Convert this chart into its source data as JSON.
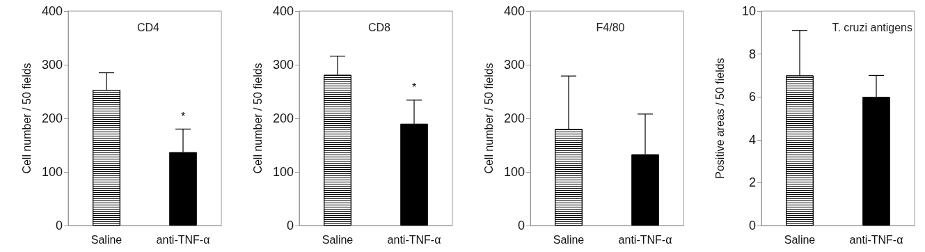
{
  "chart_data": [
    {
      "type": "bar",
      "title": "CD4",
      "ylabel": "Cell number / 50 fields",
      "categories": [
        "Saline",
        "anti-TNF-α"
      ],
      "values": [
        253,
        137
      ],
      "colors": [
        "#ffffff",
        "#000000"
      ],
      "errors": [
        [
          253,
          285
        ],
        [
          137,
          180
        ]
      ],
      "ylim": [
        0,
        400
      ],
      "yticks": [
        0,
        100,
        200,
        300,
        400
      ],
      "grid": false,
      "annotations": [
        "*"
      ]
    },
    {
      "type": "bar",
      "title": "CD8",
      "ylabel": "Cell number / 50 fields",
      "categories": [
        "Saline",
        "anti-TNF-α"
      ],
      "values": [
        281,
        190
      ],
      "colors": [
        "#ffffff",
        "#000000"
      ],
      "errors": [
        [
          281,
          316
        ],
        [
          190,
          234
        ]
      ],
      "ylim": [
        0,
        400
      ],
      "yticks": [
        0,
        100,
        200,
        300,
        400
      ],
      "grid": false,
      "annotations": [
        "*"
      ]
    },
    {
      "type": "bar",
      "title": "F4/80",
      "ylabel": "Cell number / 50 fields",
      "categories": [
        "Saline",
        "anti-TNF-α"
      ],
      "values": [
        180,
        133
      ],
      "colors": [
        "#ffffff",
        "#000000"
      ],
      "errors": [
        [
          180,
          279
        ],
        [
          133,
          208
        ]
      ],
      "ylim": [
        0,
        400
      ],
      "yticks": [
        0,
        100,
        200,
        300,
        400
      ],
      "grid": false
    },
    {
      "type": "bar",
      "title": "T. cruzi antigens",
      "ylabel": "Positive areas / 50 fields",
      "categories": [
        "Saline",
        "anti-TNF-α"
      ],
      "values": [
        7,
        6
      ],
      "colors": [
        "#ffffff",
        "#000000"
      ],
      "errors": [
        [
          7,
          9.1
        ],
        [
          6,
          7
        ]
      ],
      "ylim": [
        0,
        10
      ],
      "yticks": [
        0,
        2,
        4,
        6,
        8,
        10
      ],
      "grid": false
    }
  ]
}
